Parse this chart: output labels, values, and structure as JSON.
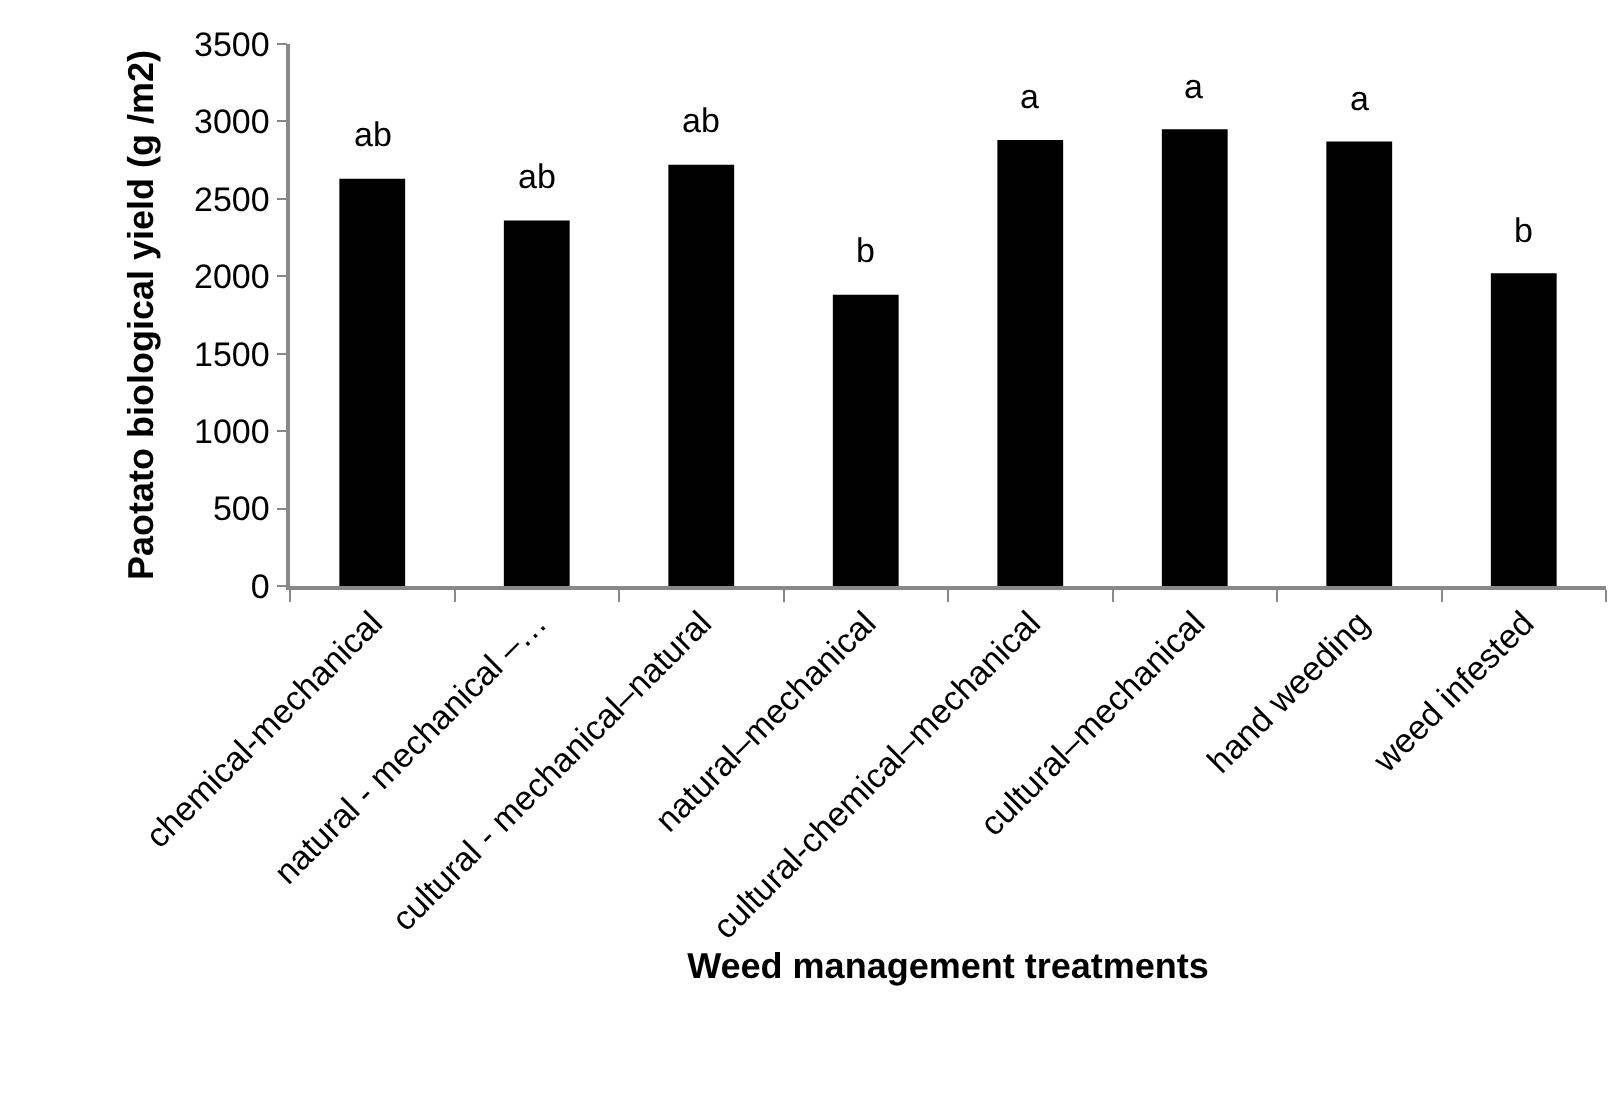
{
  "chart_data": {
    "type": "bar",
    "xlabel": "Weed management treatments",
    "ylabel": "Paotato biological yield (g /m2)",
    "categories": [
      "chemical-mechanical",
      "natural - mechanical –…",
      "cultural - mechanical–natural",
      "natural–mechanical",
      "cultural-chemical–mechanical",
      "cultural–mechanical",
      "hand weeding",
      "weed infested"
    ],
    "values": [
      2630,
      2360,
      2720,
      1880,
      2880,
      2950,
      2870,
      2020
    ],
    "color": "#000000",
    "ylim": [
      0,
      3500
    ],
    "yticks": [
      0,
      500,
      1000,
      1500,
      2000,
      2500,
      3000,
      3500
    ],
    "annotations": [
      {
        "text": "ab",
        "x": "chemical-mechanical",
        "y": 2630
      },
      {
        "text": "ab",
        "x": "natural - mechanical –…",
        "y": 2360
      },
      {
        "text": "ab",
        "x": "cultural - mechanical–natural",
        "y": 2720
      },
      {
        "text": "b",
        "x": "natural–mechanical",
        "y": 1880
      },
      {
        "text": "a",
        "x": "cultural-chemical–mechanical",
        "y": 2880
      },
      {
        "text": "a",
        "x": "cultural–mechanical",
        "y": 2950
      },
      {
        "text": "a",
        "x": "hand weeding",
        "y": 2870
      },
      {
        "text": "b",
        "x": "weed infested",
        "y": 2020
      }
    ]
  }
}
